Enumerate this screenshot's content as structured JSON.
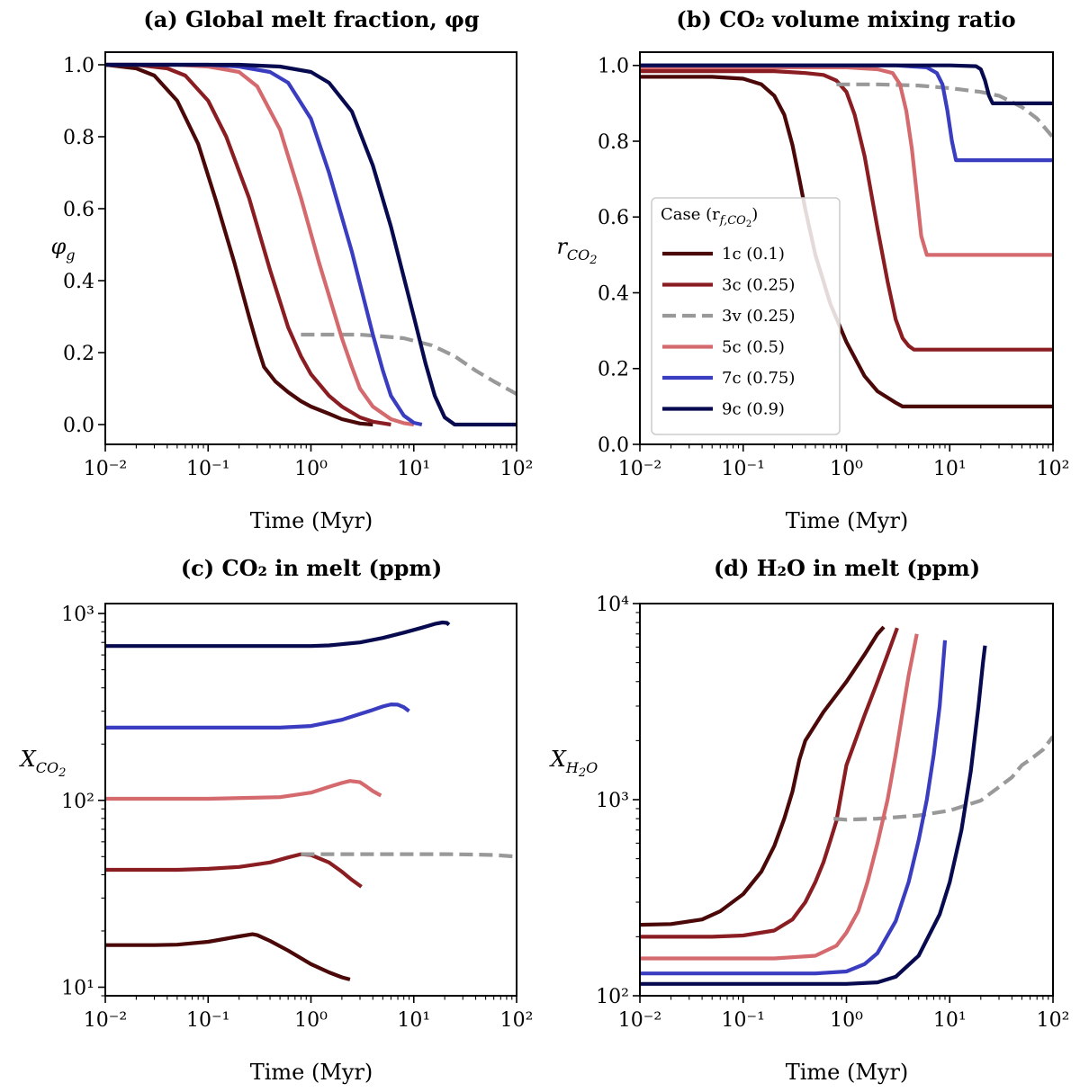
{
  "series_styles": {
    "1c": {
      "color": "#4a0808",
      "dash": false
    },
    "3c": {
      "color": "#8a1d22",
      "dash": false
    },
    "3v": {
      "color": "#999999",
      "dash": true
    },
    "5c": {
      "color": "#d46a6d",
      "dash": false
    },
    "7c": {
      "color": "#3a3dc0",
      "dash": false
    },
    "9c": {
      "color": "#080a50",
      "dash": false
    }
  },
  "chart_data": [
    {
      "id": "a",
      "type": "line",
      "title": "(a) Global melt fraction, φg",
      "xlabel": "Time (Myr)",
      "ylabel": "φg",
      "xscale": "log",
      "yscale": "linear",
      "xlim": [
        0.01,
        100
      ],
      "ylim": [
        -0.055,
        1.035
      ],
      "xticks": [
        0.01,
        0.1,
        1,
        10,
        100
      ],
      "xtick_labels": [
        "10⁻²",
        "10⁻¹",
        "10⁰",
        "10¹",
        "10²"
      ],
      "yticks": [
        0.0,
        0.2,
        0.4,
        0.6,
        0.8,
        1.0
      ],
      "ytick_labels": [
        "0.0",
        "0.2",
        "0.4",
        "0.6",
        "0.8",
        "1.0"
      ],
      "series": [
        {
          "name": "1c",
          "x": [
            0.01,
            0.02,
            0.03,
            0.05,
            0.08,
            0.12,
            0.18,
            0.25,
            0.3,
            0.35,
            0.45,
            0.6,
            0.8,
            1.0,
            1.5,
            2.0,
            3.0,
            4.0
          ],
          "y": [
            1.0,
            0.99,
            0.97,
            0.9,
            0.78,
            0.62,
            0.45,
            0.3,
            0.22,
            0.16,
            0.12,
            0.09,
            0.065,
            0.05,
            0.03,
            0.015,
            0.003,
            0.0
          ]
        },
        {
          "name": "3c",
          "x": [
            0.01,
            0.02,
            0.04,
            0.06,
            0.1,
            0.15,
            0.25,
            0.4,
            0.6,
            0.8,
            1.0,
            1.5,
            2.0,
            3.0,
            4.0,
            6.0
          ],
          "y": [
            1.0,
            1.0,
            0.99,
            0.97,
            0.9,
            0.8,
            0.63,
            0.43,
            0.27,
            0.19,
            0.14,
            0.08,
            0.05,
            0.02,
            0.008,
            0.0
          ]
        },
        {
          "name": "3v",
          "x": [
            0.8,
            1.0,
            1.5,
            2.0,
            3.0,
            5.0,
            8.0,
            15.0,
            25.0,
            40.0,
            60.0,
            100.0
          ],
          "y": [
            0.25,
            0.25,
            0.25,
            0.25,
            0.25,
            0.245,
            0.24,
            0.22,
            0.19,
            0.15,
            0.12,
            0.085
          ]
        },
        {
          "name": "5c",
          "x": [
            0.01,
            0.05,
            0.1,
            0.2,
            0.3,
            0.5,
            0.8,
            1.2,
            2.0,
            2.5,
            3.0,
            4.0,
            6.0,
            8.0,
            10.0
          ],
          "y": [
            1.0,
            1.0,
            0.995,
            0.98,
            0.94,
            0.82,
            0.63,
            0.45,
            0.24,
            0.16,
            0.1,
            0.05,
            0.015,
            0.004,
            0.0
          ]
        },
        {
          "name": "7c",
          "x": [
            0.01,
            0.1,
            0.2,
            0.4,
            0.6,
            1.0,
            1.5,
            2.5,
            4.0,
            5.0,
            6.0,
            8.0,
            10.0,
            12.0
          ],
          "y": [
            1.0,
            1.0,
            0.995,
            0.98,
            0.95,
            0.85,
            0.7,
            0.48,
            0.25,
            0.15,
            0.08,
            0.025,
            0.005,
            0.0
          ]
        },
        {
          "name": "9c",
          "x": [
            0.01,
            0.2,
            0.5,
            1.0,
            1.5,
            2.5,
            4.0,
            6.0,
            10.0,
            13.0,
            16.0,
            20.0,
            25.0,
            100.0
          ],
          "y": [
            1.0,
            1.0,
            0.995,
            0.98,
            0.95,
            0.87,
            0.72,
            0.55,
            0.3,
            0.17,
            0.08,
            0.02,
            0.0,
            0.0
          ]
        }
      ]
    },
    {
      "id": "b",
      "type": "line",
      "title": "(b) CO₂ volume mixing ratio",
      "xlabel": "Time (Myr)",
      "ylabel": "rCO2",
      "xscale": "log",
      "yscale": "linear",
      "xlim": [
        0.01,
        100
      ],
      "ylim": [
        0.0,
        1.035
      ],
      "xticks": [
        0.01,
        0.1,
        1,
        10,
        100
      ],
      "xtick_labels": [
        "10⁻²",
        "10⁻¹",
        "10⁰",
        "10¹",
        "10²"
      ],
      "yticks": [
        0.0,
        0.2,
        0.4,
        0.6,
        0.8,
        1.0
      ],
      "ytick_labels": [
        "0.0",
        "0.2",
        "0.4",
        "0.6",
        "0.8",
        "1.0"
      ],
      "legend": {
        "title": "Case (r",
        "title_sub": "f,CO",
        "title_sub2": "2",
        "title_end": ")",
        "loc": "center-left",
        "entries": [
          "1c (0.1)",
          "3c (0.25)",
          "3v (0.25)",
          "5c (0.5)",
          "7c (0.75)",
          "9c (0.9)"
        ]
      },
      "series": [
        {
          "name": "1c",
          "x": [
            0.01,
            0.05,
            0.1,
            0.15,
            0.2,
            0.25,
            0.3,
            0.35,
            0.4,
            0.5,
            0.7,
            1.0,
            1.5,
            2.0,
            3.0,
            3.5,
            100.0
          ],
          "y": [
            0.97,
            0.97,
            0.965,
            0.95,
            0.92,
            0.87,
            0.79,
            0.7,
            0.62,
            0.5,
            0.37,
            0.27,
            0.18,
            0.14,
            0.11,
            0.1,
            0.1
          ]
        },
        {
          "name": "3c",
          "x": [
            0.01,
            0.2,
            0.4,
            0.6,
            0.8,
            1.0,
            1.2,
            1.5,
            2.0,
            2.5,
            3.0,
            3.5,
            4.0,
            4.5,
            100.0
          ],
          "y": [
            0.985,
            0.985,
            0.98,
            0.975,
            0.96,
            0.93,
            0.87,
            0.76,
            0.57,
            0.43,
            0.33,
            0.28,
            0.26,
            0.25,
            0.25
          ]
        },
        {
          "name": "3v",
          "x": [
            0.8,
            1.0,
            2.0,
            5.0,
            10.0,
            20.0,
            30.0,
            50.0,
            70.0,
            100.0
          ],
          "y": [
            0.95,
            0.95,
            0.95,
            0.947,
            0.94,
            0.93,
            0.92,
            0.89,
            0.86,
            0.81
          ]
        },
        {
          "name": "5c",
          "x": [
            0.01,
            1.0,
            2.0,
            2.8,
            3.3,
            3.8,
            4.3,
            4.8,
            5.3,
            6.0,
            100.0
          ],
          "y": [
            0.995,
            0.995,
            0.99,
            0.98,
            0.95,
            0.88,
            0.78,
            0.66,
            0.55,
            0.5,
            0.5
          ]
        },
        {
          "name": "7c",
          "x": [
            0.01,
            3.0,
            6.0,
            7.5,
            8.5,
            9.5,
            10.5,
            11.5,
            100.0
          ],
          "y": [
            1.0,
            1.0,
            0.995,
            0.98,
            0.95,
            0.88,
            0.8,
            0.75,
            0.75
          ]
        },
        {
          "name": "9c",
          "x": [
            0.01,
            10.0,
            18.0,
            20.0,
            22.0,
            24.0,
            26.0,
            100.0
          ],
          "y": [
            1.0,
            1.0,
            0.998,
            0.99,
            0.96,
            0.92,
            0.9,
            0.9
          ]
        }
      ]
    },
    {
      "id": "c",
      "type": "line",
      "title": "(c) CO₂ in melt (ppm)",
      "xlabel": "Time (Myr)",
      "ylabel": "XCO2",
      "xscale": "log",
      "yscale": "log",
      "xlim": [
        0.01,
        100
      ],
      "ylim": [
        9.0,
        1130.0
      ],
      "xticks": [
        0.01,
        0.1,
        1,
        10,
        100
      ],
      "xtick_labels": [
        "10⁻²",
        "10⁻¹",
        "10⁰",
        "10¹",
        "10²"
      ],
      "yticks": [
        10,
        100,
        1000
      ],
      "ytick_labels": [
        "10¹",
        "10²",
        "10³"
      ],
      "series": [
        {
          "name": "1c",
          "x": [
            0.01,
            0.03,
            0.05,
            0.1,
            0.15,
            0.2,
            0.27,
            0.3,
            0.4,
            0.6,
            1.0,
            1.5,
            2.0,
            2.4
          ],
          "y": [
            16.8,
            16.8,
            16.9,
            17.5,
            18.2,
            18.7,
            19.2,
            19.0,
            17.7,
            15.7,
            13.3,
            12.0,
            11.3,
            11.0
          ]
        },
        {
          "name": "3c",
          "x": [
            0.01,
            0.05,
            0.1,
            0.2,
            0.4,
            0.6,
            0.8,
            1.0,
            1.5,
            2.0,
            2.5,
            3.1
          ],
          "y": [
            42.5,
            42.5,
            43.0,
            44.0,
            46.5,
            49.5,
            51.5,
            51.0,
            46.5,
            41.5,
            37.5,
            34.5
          ]
        },
        {
          "name": "3v",
          "x": [
            0.8,
            1.0,
            2.0,
            5.0,
            10.0,
            20.0,
            40.0,
            60.0,
            100.0
          ],
          "y": [
            51.5,
            51.5,
            51.5,
            51.5,
            51.5,
            51.5,
            51.3,
            51.0,
            50.0
          ]
        },
        {
          "name": "5c",
          "x": [
            0.01,
            0.1,
            0.5,
            1.0,
            1.5,
            2.0,
            2.4,
            3.0,
            3.5,
            4.0,
            4.8
          ],
          "y": [
            102.0,
            102.0,
            104.0,
            110.0,
            118.0,
            124.0,
            127.0,
            125.0,
            118.0,
            112.0,
            106.0
          ]
        },
        {
          "name": "7c",
          "x": [
            0.01,
            0.5,
            1.0,
            2.0,
            3.0,
            4.0,
            5.0,
            6.0,
            7.0,
            8.0,
            9.0
          ],
          "y": [
            245.0,
            245.0,
            250.0,
            270.0,
            290.0,
            305.0,
            318.0,
            326.0,
            325.0,
            315.0,
            300.0
          ]
        },
        {
          "name": "9c",
          "x": [
            0.01,
            1.0,
            1.5,
            3.0,
            5.0,
            8.0,
            12.0,
            16.0,
            19.0,
            21.0,
            22.0
          ],
          "y": [
            670.0,
            670.0,
            675.0,
            700.0,
            740.0,
            790.0,
            840.0,
            880.0,
            895.0,
            890.0,
            870.0
          ]
        }
      ]
    },
    {
      "id": "d",
      "type": "line",
      "title": "(d) H₂O in melt (ppm)",
      "xlabel": "Time (Myr)",
      "ylabel": "XH2O",
      "xscale": "log",
      "yscale": "log",
      "xlim": [
        0.01,
        100
      ],
      "ylim": [
        100.0,
        10000.0
      ],
      "xticks": [
        0.01,
        0.1,
        1,
        10,
        100
      ],
      "xtick_labels": [
        "10⁻²",
        "10⁻¹",
        "10⁰",
        "10¹",
        "10²"
      ],
      "yticks": [
        100,
        1000,
        10000
      ],
      "ytick_labels": [
        "10²",
        "10³",
        "10⁴"
      ],
      "series": [
        {
          "name": "1c",
          "x": [
            0.01,
            0.02,
            0.04,
            0.06,
            0.1,
            0.15,
            0.2,
            0.25,
            0.3,
            0.35,
            0.4,
            0.6,
            1.0,
            1.5,
            2.0,
            2.3
          ],
          "y": [
            230.0,
            232.0,
            245.0,
            270.0,
            330.0,
            430.0,
            580.0,
            800.0,
            1100.0,
            1600.0,
            2000.0,
            2800.0,
            4000.0,
            5500.0,
            7000.0,
            7600.0
          ]
        },
        {
          "name": "3c",
          "x": [
            0.01,
            0.05,
            0.1,
            0.2,
            0.3,
            0.4,
            0.5,
            0.6,
            0.7,
            0.8,
            0.9,
            1.0,
            1.5,
            2.0,
            2.5,
            3.1
          ],
          "y": [
            200.0,
            200.0,
            203.0,
            215.0,
            245.0,
            300.0,
            380.0,
            480.0,
            620.0,
            780.0,
            1100.0,
            1500.0,
            2700.0,
            4000.0,
            5500.0,
            7500.0
          ]
        },
        {
          "name": "3v",
          "x": [
            0.75,
            1.0,
            2.0,
            5.0,
            10.0,
            20.0,
            40.0,
            50.0,
            60.0,
            80.0,
            100.0
          ],
          "y": [
            800.0,
            790.0,
            800.0,
            830.0,
            880.0,
            990.0,
            1300.0,
            1500.0,
            1600.0,
            1800.0,
            2100.0
          ]
        },
        {
          "name": "5c",
          "x": [
            0.01,
            0.2,
            0.5,
            0.8,
            1.0,
            1.3,
            1.6,
            2.0,
            2.5,
            3.0,
            3.5,
            4.0,
            4.8
          ],
          "y": [
            155.0,
            155.0,
            160.0,
            180.0,
            210.0,
            270.0,
            380.0,
            600.0,
            1000.0,
            1700.0,
            2800.0,
            4300.0,
            7000.0
          ]
        },
        {
          "name": "7c",
          "x": [
            0.01,
            0.5,
            1.0,
            1.5,
            2.0,
            3.0,
            4.0,
            5.0,
            6.0,
            7.0,
            8.0,
            9.0
          ],
          "y": [
            130.0,
            130.0,
            133.0,
            145.0,
            165.0,
            240.0,
            380.0,
            620.0,
            1000.0,
            1700.0,
            3000.0,
            6500.0
          ]
        },
        {
          "name": "9c",
          "x": [
            0.01,
            1.0,
            2.0,
            3.0,
            5.0,
            8.0,
            10.0,
            13.0,
            16.0,
            19.0,
            21.0,
            22.0
          ],
          "y": [
            115.0,
            115.0,
            117.0,
            125.0,
            160.0,
            260.0,
            380.0,
            700.0,
            1400.0,
            3000.0,
            5000.0,
            6100.0
          ]
        }
      ]
    }
  ]
}
